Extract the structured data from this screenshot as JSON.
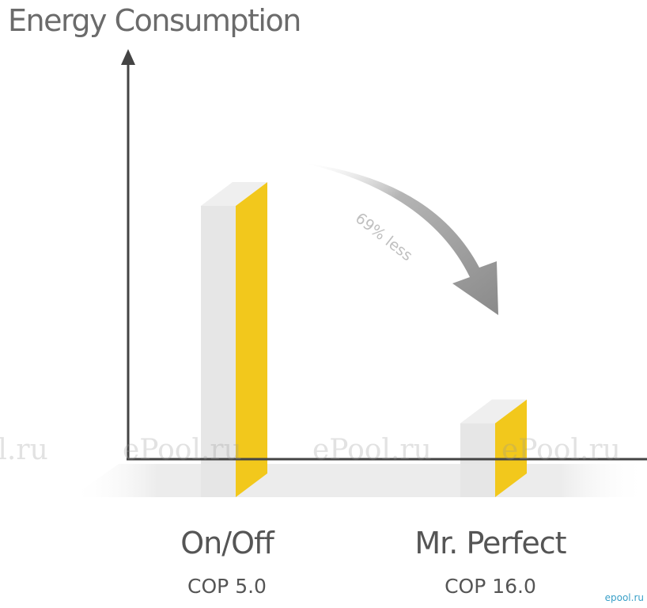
{
  "chart_data": {
    "type": "bar",
    "title": "Energy Consumption",
    "categories": [
      "On/Off",
      "Mr. Perfect"
    ],
    "subtitles": [
      "COP 5.0",
      "COP 16.0"
    ],
    "series": [
      {
        "values": [
          100,
          31
        ]
      }
    ],
    "annotation": "69% less",
    "ylim": [
      0,
      115
    ],
    "grid": false,
    "legend": "none"
  },
  "watermarks": [
    "ePool.ru",
    "ePool.ru",
    "ePool.ru",
    "ePool.ru"
  ],
  "corner_mark": "epool.ru",
  "colors": {
    "bar_front": "#e6e6e6",
    "bar_side": "#f2c81c",
    "bar_top": "#efefef",
    "axis": "#444444",
    "arrow": "#8f8f8f",
    "floor": "#ececec",
    "text": "#555555"
  }
}
